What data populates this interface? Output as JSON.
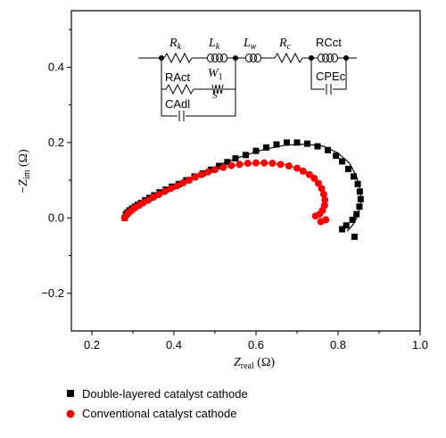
{
  "chart_data": {
    "type": "scatter",
    "xlabel": {
      "main": "Z",
      "sub": "real",
      "unit": " (Ω)"
    },
    "ylabel": {
      "prefix": "−",
      "main": "Z",
      "sub": "im",
      "unit": " (Ω)"
    },
    "xlim": [
      0.15,
      1.0
    ],
    "ylim": [
      -0.3,
      0.55
    ],
    "x_ticks": [
      "0.2",
      "0.4",
      "0.6",
      "0.8",
      "1.0"
    ],
    "y_ticks": [
      "−0.2",
      "0.0",
      "0.2",
      "0.4"
    ],
    "grid": false,
    "legend_position": "bottom-left, outside plot",
    "series": [
      {
        "name": "Double-layered catalyst cathode",
        "marker": "square",
        "color": "#000000",
        "points": [
          [
            0.28,
            0.0
          ],
          [
            0.283,
            0.01
          ],
          [
            0.287,
            0.015
          ],
          [
            0.292,
            0.02
          ],
          [
            0.298,
            0.025
          ],
          [
            0.305,
            0.03
          ],
          [
            0.312,
            0.035
          ],
          [
            0.32,
            0.04
          ],
          [
            0.33,
            0.047
          ],
          [
            0.34,
            0.053
          ],
          [
            0.352,
            0.06
          ],
          [
            0.365,
            0.068
          ],
          [
            0.38,
            0.075
          ],
          [
            0.395,
            0.083
          ],
          [
            0.412,
            0.09
          ],
          [
            0.43,
            0.1
          ],
          [
            0.45,
            0.11
          ],
          [
            0.47,
            0.118
          ],
          [
            0.49,
            0.128
          ],
          [
            0.51,
            0.138
          ],
          [
            0.53,
            0.148
          ],
          [
            0.55,
            0.158
          ],
          [
            0.575,
            0.167
          ],
          [
            0.6,
            0.178
          ],
          [
            0.625,
            0.187
          ],
          [
            0.65,
            0.195
          ],
          [
            0.675,
            0.2
          ],
          [
            0.7,
            0.2
          ],
          [
            0.725,
            0.197
          ],
          [
            0.75,
            0.19
          ],
          [
            0.775,
            0.18
          ],
          [
            0.795,
            0.165
          ],
          [
            0.81,
            0.15
          ],
          [
            0.825,
            0.13
          ],
          [
            0.838,
            0.11
          ],
          [
            0.848,
            0.09
          ],
          [
            0.853,
            0.07
          ],
          [
            0.855,
            0.05
          ],
          [
            0.852,
            0.03
          ],
          [
            0.845,
            0.01
          ],
          [
            0.835,
            -0.005
          ],
          [
            0.82,
            -0.02
          ],
          [
            0.81,
            -0.03
          ],
          [
            0.84,
            -0.05
          ]
        ]
      },
      {
        "name": "Conventional catalyst cathode",
        "marker": "circle",
        "color": "#ff0000",
        "points": [
          [
            0.28,
            0.0
          ],
          [
            0.285,
            0.008
          ],
          [
            0.29,
            0.014
          ],
          [
            0.297,
            0.02
          ],
          [
            0.305,
            0.027
          ],
          [
            0.315,
            0.033
          ],
          [
            0.325,
            0.04
          ],
          [
            0.337,
            0.047
          ],
          [
            0.35,
            0.055
          ],
          [
            0.363,
            0.062
          ],
          [
            0.377,
            0.07
          ],
          [
            0.392,
            0.078
          ],
          [
            0.407,
            0.085
          ],
          [
            0.422,
            0.093
          ],
          [
            0.437,
            0.1
          ],
          [
            0.452,
            0.108
          ],
          [
            0.467,
            0.115
          ],
          [
            0.483,
            0.122
          ],
          [
            0.5,
            0.128
          ],
          [
            0.52,
            0.134
          ],
          [
            0.54,
            0.139
          ],
          [
            0.56,
            0.142
          ],
          [
            0.58,
            0.145
          ],
          [
            0.6,
            0.146
          ],
          [
            0.62,
            0.146
          ],
          [
            0.64,
            0.145
          ],
          [
            0.66,
            0.142
          ],
          [
            0.68,
            0.138
          ],
          [
            0.7,
            0.132
          ],
          [
            0.715,
            0.124
          ],
          [
            0.73,
            0.115
          ],
          [
            0.742,
            0.105
          ],
          [
            0.752,
            0.092
          ],
          [
            0.76,
            0.078
          ],
          [
            0.765,
            0.063
          ],
          [
            0.768,
            0.048
          ],
          [
            0.767,
            0.033
          ],
          [
            0.762,
            0.02
          ],
          [
            0.755,
            0.01
          ],
          [
            0.745,
            0.005
          ],
          [
            0.758,
            -0.01
          ],
          [
            0.77,
            -0.005
          ]
        ]
      }
    ],
    "fits": [
      {
        "color": "#000000",
        "points": [
          [
            0.28,
            0.0
          ],
          [
            0.3,
            0.025
          ],
          [
            0.33,
            0.047
          ],
          [
            0.37,
            0.07
          ],
          [
            0.42,
            0.095
          ],
          [
            0.47,
            0.12
          ],
          [
            0.52,
            0.145
          ],
          [
            0.57,
            0.165
          ],
          [
            0.62,
            0.182
          ],
          [
            0.67,
            0.193
          ],
          [
            0.72,
            0.196
          ],
          [
            0.765,
            0.19
          ],
          [
            0.8,
            0.172
          ],
          [
            0.828,
            0.145
          ],
          [
            0.845,
            0.11
          ],
          [
            0.855,
            0.07
          ],
          [
            0.855,
            0.035
          ],
          [
            0.848,
            0.005
          ],
          [
            0.835,
            -0.02
          ],
          [
            0.822,
            -0.035
          ]
        ]
      },
      {
        "color": "#ff0000",
        "points": [
          [
            0.28,
            0.0
          ],
          [
            0.3,
            0.022
          ],
          [
            0.33,
            0.042
          ],
          [
            0.37,
            0.067
          ],
          [
            0.42,
            0.093
          ],
          [
            0.47,
            0.117
          ],
          [
            0.52,
            0.133
          ],
          [
            0.57,
            0.143
          ],
          [
            0.62,
            0.146
          ],
          [
            0.67,
            0.142
          ],
          [
            0.71,
            0.128
          ],
          [
            0.74,
            0.108
          ],
          [
            0.76,
            0.082
          ],
          [
            0.768,
            0.055
          ],
          [
            0.765,
            0.03
          ],
          [
            0.755,
            0.012
          ]
        ]
      }
    ],
    "circuit": {
      "labels": {
        "rk": [
          "R",
          "k"
        ],
        "lk": [
          "L",
          "k"
        ],
        "lw": [
          "L",
          "w"
        ],
        "rc": [
          "R",
          "c"
        ],
        "w1": [
          "W",
          "1"
        ],
        "ws": [
          "W",
          "S"
        ],
        "ract": "RAct",
        "cadl": "CAdl",
        "rcct": "RCct",
        "cpec": "CPEc"
      }
    }
  }
}
